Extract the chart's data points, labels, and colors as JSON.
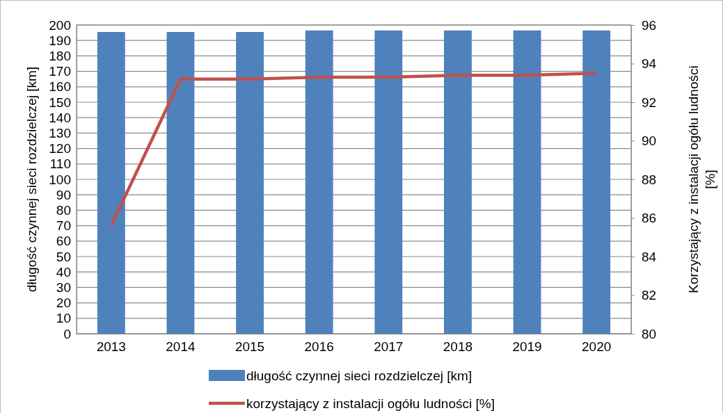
{
  "chart_data": {
    "type": "bar",
    "categories": [
      "2013",
      "2014",
      "2015",
      "2016",
      "2017",
      "2018",
      "2019",
      "2020"
    ],
    "series": [
      {
        "name": "długość czynnej sieci rozdzielczej [km]",
        "color": "#4f81bd",
        "values": [
          195.5,
          195.5,
          195.5,
          196.5,
          196.5,
          196.5,
          196.5,
          196.5
        ]
      },
      {
        "name": "korzystający z instalacji ogółu ludności [%]",
        "type": "line",
        "axis": "y2",
        "color": "#c0504d",
        "values": [
          85.6,
          93.2,
          93.2,
          93.3,
          93.3,
          93.4,
          93.4,
          93.5
        ]
      }
    ],
    "ylabel": "długość czynnej sieci rozdzielczej [km]",
    "y2label": "Korzystający z instalacji ogółu ludności [%]",
    "ylim": [
      0,
      200
    ],
    "yticks": [
      0,
      10,
      20,
      30,
      40,
      50,
      60,
      70,
      80,
      90,
      100,
      110,
      120,
      130,
      140,
      150,
      160,
      170,
      180,
      190,
      200
    ],
    "y2lim": [
      80,
      96
    ],
    "y2ticks": [
      80,
      82,
      84,
      86,
      88,
      90,
      92,
      94,
      96
    ],
    "grid": "y",
    "legend": "bottom",
    "marker": "none",
    "line_style": "solid"
  }
}
